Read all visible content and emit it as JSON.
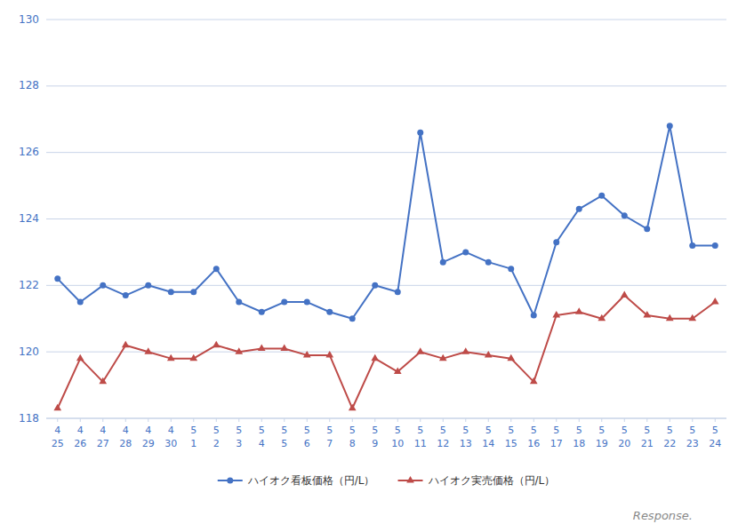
{
  "chart_data": {
    "type": "line",
    "categories": [
      "25",
      "26",
      "27",
      "28",
      "29",
      "30",
      "1",
      "2",
      "3",
      "4",
      "5",
      "6",
      "7",
      "8",
      "9",
      "10",
      "11",
      "12",
      "13",
      "14",
      "15",
      "16",
      "17",
      "18",
      "19",
      "20",
      "21",
      "22",
      "23",
      "24"
    ],
    "annotations": [
      {
        "text": "4",
        "x": "25"
      },
      {
        "text": "4",
        "x": "26"
      },
      {
        "text": "4",
        "x": "27"
      },
      {
        "text": "4",
        "x": "28"
      },
      {
        "text": "4",
        "x": "29"
      },
      {
        "text": "4",
        "x": "30"
      },
      {
        "text": "5",
        "x": "1"
      },
      {
        "text": "5",
        "x": "2"
      },
      {
        "text": "5",
        "x": "3"
      },
      {
        "text": "5",
        "x": "4"
      },
      {
        "text": "5",
        "x": "5"
      },
      {
        "text": "5",
        "x": "6"
      },
      {
        "text": "5",
        "x": "7"
      },
      {
        "text": "5",
        "x": "8"
      },
      {
        "text": "5",
        "x": "9"
      },
      {
        "text": "5",
        "x": "10"
      },
      {
        "text": "5",
        "x": "11"
      },
      {
        "text": "5",
        "x": "12"
      },
      {
        "text": "5",
        "x": "13"
      },
      {
        "text": "5",
        "x": "14"
      },
      {
        "text": "5",
        "x": "15"
      },
      {
        "text": "5",
        "x": "16"
      },
      {
        "text": "5",
        "x": "17"
      },
      {
        "text": "5",
        "x": "18"
      },
      {
        "text": "5",
        "x": "19"
      },
      {
        "text": "5",
        "x": "20"
      },
      {
        "text": "5",
        "x": "21"
      },
      {
        "text": "5",
        "x": "22"
      },
      {
        "text": "5",
        "x": "23"
      },
      {
        "text": "5",
        "x": "24"
      },
      {
        "text": "Response."
      }
    ],
    "series": [
      {
        "name": "ハイオク看板価格（円/L）",
        "color": "#4472c4",
        "marker": "circle",
        "values": [
          122.2,
          121.5,
          122.0,
          121.7,
          122.0,
          121.8,
          121.8,
          122.5,
          121.5,
          121.2,
          121.5,
          121.5,
          121.2,
          121.0,
          122.0,
          121.8,
          126.6,
          122.7,
          123.0,
          122.7,
          122.5,
          121.1,
          123.3,
          124.3,
          124.7,
          124.1,
          123.7,
          126.8,
          123.2,
          123.2
        ]
      },
      {
        "name": "ハイオク実売価格（円/L）",
        "color": "#be4b48",
        "marker": "triangle",
        "values": [
          118.3,
          119.8,
          119.1,
          120.2,
          120.0,
          119.8,
          119.8,
          120.2,
          120.0,
          120.1,
          120.1,
          119.9,
          119.9,
          118.3,
          119.8,
          119.4,
          120.0,
          119.8,
          120.0,
          119.9,
          119.8,
          119.1,
          121.1,
          121.2,
          121.0,
          121.7,
          121.1,
          121.0,
          121.0,
          121.5
        ]
      }
    ],
    "ylim": [
      118,
      130
    ],
    "yticks": [
      118,
      120,
      122,
      124,
      126,
      128,
      130
    ],
    "grid": true,
    "legend": "bottom"
  }
}
